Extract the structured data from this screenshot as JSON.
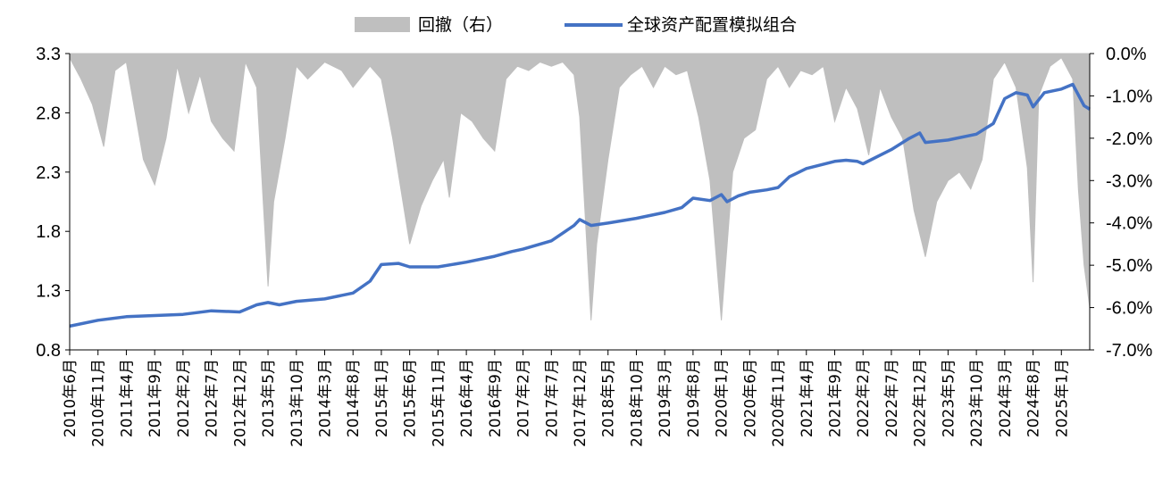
{
  "chart_data": {
    "type": "line",
    "title": "",
    "legend": {
      "placement": "top-center",
      "entries": [
        {
          "label": "回撤（右）",
          "kind": "area",
          "color": "#bfbfbf"
        },
        {
          "label": "全球资产配置模拟组合",
          "kind": "line",
          "color": "#4472c4"
        }
      ]
    },
    "left_axis": {
      "ticks": [
        "3.3",
        "2.8",
        "2.3",
        "1.8",
        "1.3",
        "0.8"
      ],
      "ylim": [
        0.8,
        3.3
      ]
    },
    "right_axis": {
      "ticks": [
        "0.0%",
        "-1.0%",
        "-2.0%",
        "-3.0%",
        "-4.0%",
        "-5.0%",
        "-6.0%",
        "-7.0%"
      ],
      "ylim": [
        -7.0,
        0.0
      ],
      "unit": "%"
    },
    "x_axis": {
      "start": "2010-06",
      "end": "2025-06",
      "ticks": [
        "2010年6月",
        "2010年11月",
        "2011年4月",
        "2011年9月",
        "2012年2月",
        "2012年7月",
        "2012年12月",
        "2013年5月",
        "2013年10月",
        "2014年3月",
        "2014年8月",
        "2015年1月",
        "2015年6月",
        "2015年11月",
        "2016年4月",
        "2016年9月",
        "2017年2月",
        "2017年7月",
        "2017年12月",
        "2018年5月",
        "2018年10月",
        "2019年3月",
        "2019年8月",
        "2020年1月",
        "2020年6月",
        "2020年11月",
        "2021年4月",
        "2021年9月",
        "2022年2月",
        "2022年7月",
        "2022年12月",
        "2023年5月",
        "2023年10月",
        "2024年3月",
        "2024年8月",
        "2025年1月"
      ]
    },
    "series": [
      {
        "name": "全球资产配置模拟组合",
        "axis": "left",
        "color": "#4472c4",
        "x": [
          "2010-06",
          "2010-11",
          "2011-04",
          "2011-09",
          "2012-02",
          "2012-07",
          "2012-12",
          "2013-03",
          "2013-05",
          "2013-07",
          "2013-10",
          "2014-03",
          "2014-08",
          "2014-11",
          "2015-01",
          "2015-04",
          "2015-06",
          "2015-11",
          "2016-04",
          "2016-09",
          "2016-12",
          "2017-02",
          "2017-07",
          "2017-11",
          "2017-12",
          "2018-02",
          "2018-05",
          "2018-10",
          "2019-03",
          "2019-06",
          "2019-08",
          "2019-11",
          "2020-01",
          "2020-02",
          "2020-04",
          "2020-06",
          "2020-09",
          "2020-11",
          "2021-01",
          "2021-04",
          "2021-09",
          "2021-11",
          "2022-01",
          "2022-02",
          "2022-07",
          "2022-10",
          "2022-12",
          "2023-01",
          "2023-05",
          "2023-10",
          "2024-01",
          "2024-03",
          "2024-05",
          "2024-07",
          "2024-08",
          "2024-10",
          "2025-01",
          "2025-03",
          "2025-05",
          "2025-06"
        ],
        "values": [
          1.0,
          1.05,
          1.08,
          1.09,
          1.1,
          1.13,
          1.12,
          1.18,
          1.2,
          1.18,
          1.21,
          1.23,
          1.28,
          1.38,
          1.52,
          1.53,
          1.5,
          1.5,
          1.54,
          1.59,
          1.63,
          1.65,
          1.72,
          1.85,
          1.9,
          1.85,
          1.87,
          1.91,
          1.96,
          2.0,
          2.08,
          2.06,
          2.11,
          2.05,
          2.1,
          2.13,
          2.15,
          2.17,
          2.26,
          2.33,
          2.39,
          2.4,
          2.39,
          2.37,
          2.49,
          2.58,
          2.63,
          2.55,
          2.57,
          2.62,
          2.71,
          2.92,
          2.97,
          2.95,
          2.85,
          2.97,
          3.0,
          3.04,
          2.86,
          2.83
        ]
      },
      {
        "name": "回撤（右）",
        "axis": "right",
        "type": "area",
        "color": "#bfbfbf",
        "x": [
          "2010-06",
          "2010-08",
          "2010-10",
          "2010-12",
          "2011-02",
          "2011-04",
          "2011-07",
          "2011-09",
          "2011-11",
          "2012-01",
          "2012-03",
          "2012-05",
          "2012-07",
          "2012-09",
          "2012-11",
          "2013-01",
          "2013-03",
          "2013-05",
          "2013-06",
          "2013-08",
          "2013-10",
          "2013-12",
          "2014-03",
          "2014-06",
          "2014-08",
          "2014-11",
          "2015-01",
          "2015-03",
          "2015-06",
          "2015-08",
          "2015-10",
          "2015-12",
          "2016-01",
          "2016-03",
          "2016-05",
          "2016-07",
          "2016-09",
          "2016-11",
          "2017-01",
          "2017-03",
          "2017-05",
          "2017-07",
          "2017-09",
          "2017-11",
          "2017-12",
          "2018-02",
          "2018-03",
          "2018-05",
          "2018-07",
          "2018-09",
          "2018-11",
          "2019-01",
          "2019-03",
          "2019-05",
          "2019-07",
          "2019-09",
          "2019-11",
          "2020-01",
          "2020-03",
          "2020-05",
          "2020-07",
          "2020-09",
          "2020-11",
          "2021-01",
          "2021-03",
          "2021-05",
          "2021-07",
          "2021-09",
          "2021-11",
          "2022-01",
          "2022-03",
          "2022-05",
          "2022-07",
          "2022-09",
          "2022-11",
          "2023-01",
          "2023-03",
          "2023-05",
          "2023-07",
          "2023-09",
          "2023-11",
          "2024-01",
          "2024-03",
          "2024-05",
          "2024-07",
          "2024-08",
          "2024-09",
          "2024-11",
          "2025-01",
          "2025-03",
          "2025-04",
          "2025-05",
          "2025-06"
        ],
        "values": [
          -0.1,
          -0.6,
          -1.2,
          -2.2,
          -0.4,
          -0.2,
          -2.5,
          -3.1,
          -2.0,
          -0.3,
          -1.4,
          -0.5,
          -1.6,
          -2.0,
          -2.3,
          -0.2,
          -0.8,
          -5.5,
          -3.5,
          -2.0,
          -0.3,
          -0.6,
          -0.2,
          -0.4,
          -0.8,
          -0.3,
          -0.6,
          -2.0,
          -4.5,
          -3.6,
          -3.0,
          -2.5,
          -3.4,
          -1.4,
          -1.6,
          -2.0,
          -2.3,
          -0.6,
          -0.3,
          -0.4,
          -0.2,
          -0.3,
          -0.2,
          -0.5,
          -1.5,
          -6.3,
          -4.5,
          -2.5,
          -0.8,
          -0.5,
          -0.3,
          -0.8,
          -0.3,
          -0.5,
          -0.4,
          -1.5,
          -3.0,
          -6.3,
          -2.8,
          -2.0,
          -1.8,
          -0.6,
          -0.3,
          -0.8,
          -0.4,
          -0.5,
          -0.3,
          -1.6,
          -0.8,
          -1.3,
          -2.4,
          -0.8,
          -1.5,
          -2.0,
          -3.7,
          -4.8,
          -3.5,
          -3.0,
          -2.8,
          -3.2,
          -2.5,
          -0.6,
          -0.2,
          -0.8,
          -2.7,
          -5.4,
          -1.0,
          -0.3,
          -0.1,
          -0.6,
          -3.2,
          -5.0,
          -6.0
        ]
      }
    ]
  }
}
